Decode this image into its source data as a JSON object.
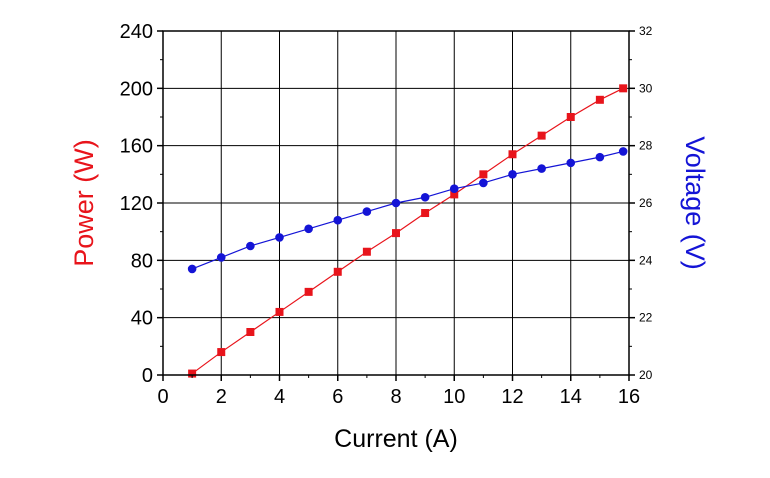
{
  "chart_data": {
    "type": "scatter",
    "title": "",
    "xlabel": "Current (A)",
    "ylabel": "Power (W)",
    "y2label": "Voltage (V)",
    "xlim": [
      0,
      16
    ],
    "ylim": [
      0,
      240
    ],
    "y2lim": [
      20,
      32
    ],
    "x_ticks": [
      0,
      2,
      4,
      6,
      8,
      10,
      12,
      14,
      16
    ],
    "y_ticks": [
      0,
      40,
      80,
      120,
      160,
      200,
      240
    ],
    "y2_ticks": [
      20,
      22,
      24,
      26,
      28,
      30,
      32
    ],
    "grid": true,
    "legend": "none",
    "colors": {
      "power": "#e8141b",
      "voltage": "#1414d6",
      "axis": "#000000"
    },
    "series": [
      {
        "axis": "left",
        "color": "#e8141b",
        "marker": "square",
        "x": [
          1,
          2,
          3,
          4,
          5,
          6,
          7,
          8,
          9,
          10,
          11,
          12,
          13,
          14,
          15,
          15.8
        ],
        "values": [
          1,
          16,
          30,
          44,
          58,
          72,
          86,
          99,
          113,
          126,
          140,
          154,
          167,
          180,
          192,
          200
        ]
      },
      {
        "axis": "right",
        "color": "#1414d6",
        "marker": "circle",
        "x": [
          1,
          2,
          3,
          4,
          5,
          6,
          7,
          8,
          9,
          10,
          11,
          12,
          13,
          14,
          15,
          15.8
        ],
        "values": [
          23.7,
          24.1,
          24.5,
          24.8,
          25.1,
          25.4,
          25.7,
          26.0,
          26.2,
          26.5,
          26.7,
          27.0,
          27.2,
          27.4,
          27.6,
          27.8
        ]
      }
    ]
  }
}
